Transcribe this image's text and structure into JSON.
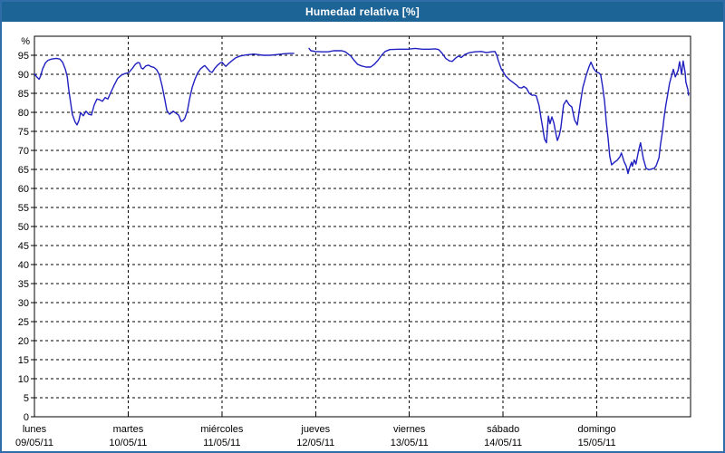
{
  "window": {
    "title": "Humedad relativa [%]"
  },
  "colors": {
    "titlebar": "#1d6496",
    "window_border": "#2e6da8",
    "line": "#2020c0",
    "grid": "#000000",
    "axis": "#000000",
    "label": "#000000"
  },
  "chart_data": {
    "type": "line",
    "title": "Humedad relativa [%]",
    "ylabel": "%",
    "ylim": [
      0,
      100
    ],
    "grid": true,
    "yticks": [
      0,
      5,
      10,
      15,
      20,
      25,
      30,
      35,
      40,
      45,
      50,
      55,
      60,
      65,
      70,
      75,
      80,
      85,
      90,
      95
    ],
    "x_axis": {
      "hours_total": 168,
      "days": [
        {
          "name": "lunes",
          "date": "09/05/11"
        },
        {
          "name": "martes",
          "date": "10/05/11"
        },
        {
          "name": "miércoles",
          "date": "11/05/11"
        },
        {
          "name": "jueves",
          "date": "12/05/11"
        },
        {
          "name": "viernes",
          "date": "13/05/11"
        },
        {
          "name": "sábado",
          "date": "14/05/11"
        },
        {
          "name": "domingo",
          "date": "15/05/11"
        }
      ]
    },
    "series": [
      {
        "name": "Humedad relativa",
        "color": "#2020c0",
        "segments": [
          [
            [
              0,
              90.1
            ],
            [
              0.7,
              89.2
            ],
            [
              1.2,
              88.7
            ],
            [
              1.6,
              89.6
            ],
            [
              2.1,
              91.4
            ],
            [
              2.8,
              93
            ],
            [
              3.5,
              93.7
            ],
            [
              4.4,
              94
            ],
            [
              5.6,
              94.2
            ],
            [
              6.5,
              94
            ],
            [
              7.2,
              93.2
            ],
            [
              7.9,
              91.4
            ],
            [
              8.4,
              89.4
            ],
            [
              8.8,
              85.9
            ],
            [
              9.3,
              82.3
            ],
            [
              9.7,
              79.5
            ],
            [
              10.4,
              77.5
            ],
            [
              10.9,
              76.7
            ],
            [
              11.4,
              77.9
            ],
            [
              11.8,
              79.9
            ],
            [
              12.5,
              79.1
            ],
            [
              13.2,
              80.3
            ],
            [
              13.9,
              79.5
            ],
            [
              14.6,
              79.3
            ],
            [
              15.3,
              81.9
            ],
            [
              16,
              83.5
            ],
            [
              16.7,
              83.3
            ],
            [
              17.4,
              82.9
            ],
            [
              18.1,
              83.9
            ],
            [
              18.8,
              83.5
            ],
            [
              19.5,
              85.1
            ],
            [
              20.4,
              87.1
            ],
            [
              21.3,
              88.9
            ],
            [
              22.3,
              89.8
            ],
            [
              23.2,
              90.2
            ],
            [
              24.1,
              90.4
            ],
            [
              25.1,
              91.6
            ],
            [
              25.8,
              92.6
            ],
            [
              26.5,
              93.1
            ],
            [
              26.9,
              93
            ],
            [
              27.4,
              91.6
            ],
            [
              27.8,
              91.4
            ],
            [
              28.5,
              92.2
            ],
            [
              29.2,
              92.4
            ],
            [
              29.9,
              92
            ],
            [
              30.6,
              91.8
            ],
            [
              31.3,
              91.2
            ],
            [
              32,
              89.8
            ],
            [
              32.7,
              86.9
            ],
            [
              33.4,
              83.3
            ],
            [
              33.9,
              80.5
            ],
            [
              34.6,
              79.5
            ],
            [
              35,
              79.8
            ],
            [
              35.5,
              80.3
            ],
            [
              36.2,
              79.8
            ],
            [
              36.9,
              79.3
            ],
            [
              37.6,
              77.6
            ],
            [
              38.1,
              77.9
            ],
            [
              38.5,
              78.4
            ],
            [
              39.2,
              80.5
            ],
            [
              39.7,
              83.4
            ],
            [
              40.4,
              86.6
            ],
            [
              41.1,
              88.7
            ],
            [
              41.8,
              90.3
            ],
            [
              42.5,
              91.4
            ],
            [
              43.2,
              92
            ],
            [
              43.6,
              92.3
            ],
            [
              44.3,
              91.5
            ],
            [
              45,
              90.7
            ],
            [
              45.5,
              90.5
            ],
            [
              46.2,
              91.6
            ],
            [
              46.9,
              92.4
            ],
            [
              47.6,
              93
            ],
            [
              48,
              93.2
            ],
            [
              48.5,
              92.6
            ],
            [
              49,
              92.1
            ],
            [
              49.7,
              92.8
            ],
            [
              50.6,
              93.6
            ],
            [
              51.5,
              94.3
            ],
            [
              52.7,
              94.8
            ],
            [
              54.3,
              95.1
            ],
            [
              56.2,
              95.3
            ],
            [
              58.5,
              95
            ],
            [
              60.3,
              95
            ],
            [
              62.2,
              95.2
            ],
            [
              64,
              95.4
            ],
            [
              65.4,
              95.5
            ],
            [
              66.4,
              95.5
            ]
          ],
          [
            [
              70.3,
              96.8
            ],
            [
              70.8,
              96.2
            ],
            [
              71.9,
              96
            ],
            [
              73.6,
              95.9
            ],
            [
              75.2,
              95.9
            ],
            [
              76.6,
              96.2
            ],
            [
              78.7,
              96.2
            ],
            [
              79.6,
              95.9
            ],
            [
              81,
              94.8
            ],
            [
              81.9,
              93.6
            ],
            [
              82.8,
              92.6
            ],
            [
              83.8,
              92.2
            ],
            [
              84.9,
              91.9
            ],
            [
              86.1,
              91.9
            ],
            [
              87,
              92.6
            ],
            [
              87.9,
              93.6
            ],
            [
              88.9,
              95
            ],
            [
              89.8,
              96
            ],
            [
              91,
              96.5
            ],
            [
              93.3,
              96.6
            ],
            [
              95.6,
              96.6
            ],
            [
              97.5,
              96.8
            ],
            [
              99.3,
              96.6
            ],
            [
              101.2,
              96.6
            ],
            [
              102.6,
              96.7
            ],
            [
              103.5,
              96.5
            ],
            [
              104.4,
              95.5
            ],
            [
              105.3,
              94.2
            ],
            [
              106.3,
              93.5
            ],
            [
              107,
              93.4
            ],
            [
              107.9,
              94.3
            ],
            [
              108.6,
              94.8
            ],
            [
              109.3,
              94.4
            ],
            [
              110.2,
              95.2
            ],
            [
              111.4,
              95.7
            ],
            [
              112.8,
              95.9
            ],
            [
              114.4,
              96
            ],
            [
              115.8,
              95.7
            ],
            [
              116.9,
              95.9
            ],
            [
              117.9,
              96
            ],
            [
              118.4,
              95
            ],
            [
              118.8,
              93.5
            ],
            [
              119.5,
              91.5
            ],
            [
              120,
              90.7
            ],
            [
              120.7,
              89.5
            ],
            [
              121.6,
              88.6
            ],
            [
              122.5,
              87.9
            ],
            [
              123.4,
              87.2
            ],
            [
              124.1,
              86.5
            ],
            [
              124.8,
              86.4
            ],
            [
              125.3,
              86.8
            ],
            [
              126,
              86.3
            ],
            [
              126.7,
              85
            ],
            [
              127.4,
              84.5
            ],
            [
              128.1,
              84.5
            ],
            [
              128.5,
              84.3
            ],
            [
              129.2,
              81.8
            ],
            [
              129.7,
              78.7
            ],
            [
              130.2,
              75.6
            ],
            [
              130.6,
              73
            ],
            [
              131.1,
              72
            ],
            [
              131.6,
              79
            ],
            [
              132,
              77
            ],
            [
              132.5,
              78.8
            ],
            [
              133,
              77.2
            ],
            [
              133.4,
              75
            ],
            [
              133.9,
              72.6
            ],
            [
              134.4,
              74
            ],
            [
              134.8,
              76
            ],
            [
              135.5,
              82
            ],
            [
              136.2,
              83.2
            ],
            [
              136.9,
              82
            ],
            [
              137.6,
              81.4
            ],
            [
              138.3,
              78
            ],
            [
              139,
              76.7
            ],
            [
              139.7,
              81.8
            ],
            [
              140.4,
              86.5
            ],
            [
              141.3,
              89.8
            ],
            [
              142,
              92
            ],
            [
              142.5,
              93.2
            ],
            [
              143.2,
              91.5
            ],
            [
              143.9,
              90.6
            ],
            [
              144.6,
              90.3
            ],
            [
              145,
              89.8
            ],
            [
              145.5,
              86.7
            ],
            [
              146,
              82.7
            ],
            [
              146.4,
              77.7
            ],
            [
              146.9,
              73
            ],
            [
              147.3,
              68.5
            ],
            [
              147.8,
              66.2
            ],
            [
              148.5,
              66.9
            ],
            [
              149.2,
              67.4
            ],
            [
              149.9,
              68.3
            ],
            [
              150.3,
              69.3
            ],
            [
              151,
              67
            ],
            [
              151.5,
              65.9
            ],
            [
              152,
              63.9
            ],
            [
              152.4,
              65.5
            ],
            [
              152.9,
              66.9
            ],
            [
              153.1,
              65.8
            ],
            [
              153.6,
              67.5
            ],
            [
              154,
              66.4
            ],
            [
              154.7,
              70
            ],
            [
              155.2,
              72
            ],
            [
              155.9,
              67.8
            ],
            [
              156.6,
              65.3
            ],
            [
              157.3,
              64.9
            ],
            [
              158,
              65.1
            ],
            [
              158.7,
              65.3
            ],
            [
              159.2,
              66
            ],
            [
              159.9,
              68
            ],
            [
              160.3,
              71.5
            ],
            [
              160.8,
              75
            ],
            [
              161.2,
              78.5
            ],
            [
              161.7,
              82
            ],
            [
              162.2,
              85
            ],
            [
              162.6,
              87.5
            ],
            [
              163.1,
              89.5
            ],
            [
              163.6,
              91.3
            ],
            [
              164.1,
              89.3
            ],
            [
              164.8,
              91
            ],
            [
              165.2,
              93.3
            ],
            [
              165.7,
              90
            ],
            [
              166.1,
              93.5
            ],
            [
              166.6,
              90.5
            ],
            [
              166.8,
              88
            ],
            [
              167.3,
              86
            ],
            [
              167.5,
              84.5
            ]
          ]
        ]
      }
    ]
  }
}
